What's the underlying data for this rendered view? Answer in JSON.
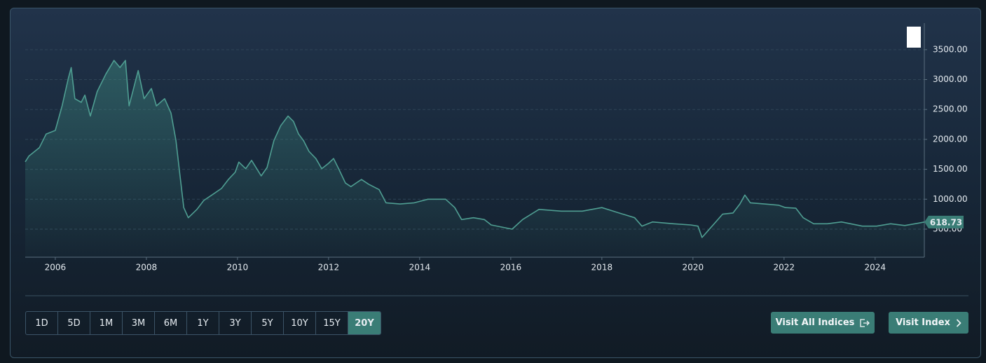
{
  "chart_data": {
    "type": "line",
    "x": [
      2005.34,
      2005.42,
      2005.65,
      2005.8,
      2006.0,
      2006.15,
      2006.29,
      2006.35,
      2006.43,
      2006.57,
      2006.65,
      2006.77,
      2006.92,
      2007.11,
      2007.29,
      2007.42,
      2007.54,
      2007.62,
      2007.82,
      2007.95,
      2008.11,
      2008.22,
      2008.4,
      2008.54,
      2008.65,
      2008.72,
      2008.82,
      2008.92,
      2009.11,
      2009.26,
      2009.42,
      2009.65,
      2009.8,
      2009.95,
      2010.03,
      2010.18,
      2010.31,
      2010.52,
      2010.65,
      2010.8,
      2010.95,
      2011.11,
      2011.23,
      2011.34,
      2011.45,
      2011.57,
      2011.72,
      2011.85,
      2012.0,
      2012.11,
      2012.22,
      2012.37,
      2012.49,
      2012.72,
      2012.88,
      2013.11,
      2013.26,
      2013.57,
      2013.88,
      2014.18,
      2014.57,
      2014.77,
      2014.92,
      2015.18,
      2015.42,
      2015.57,
      2016.03,
      2016.26,
      2016.62,
      2017.11,
      2017.57,
      2018.0,
      2018.34,
      2018.72,
      2018.88,
      2019.11,
      2019.57,
      2019.95,
      2020.11,
      2020.2,
      2020.42,
      2020.65,
      2020.88,
      2021.03,
      2021.14,
      2021.26,
      2021.57,
      2021.88,
      2022.03,
      2022.26,
      2022.42,
      2022.65,
      2022.95,
      2023.26,
      2023.72,
      2024.03,
      2024.34,
      2024.65,
      2024.95,
      2025.08
    ],
    "values": [
      1624,
      1720,
      1860,
      2090,
      2150,
      2560,
      3030,
      3200,
      2680,
      2620,
      2740,
      2390,
      2800,
      3090,
      3320,
      3200,
      3320,
      2560,
      3150,
      2680,
      2850,
      2560,
      2680,
      2440,
      1980,
      1510,
      860,
      690,
      830,
      980,
      1060,
      1180,
      1330,
      1450,
      1620,
      1510,
      1650,
      1390,
      1530,
      1980,
      2230,
      2390,
      2300,
      2090,
      1980,
      1800,
      1680,
      1510,
      1600,
      1680,
      1510,
      1270,
      1210,
      1330,
      1250,
      1160,
      940,
      920,
      940,
      1000,
      1000,
      860,
      660,
      690,
      660,
      570,
      500,
      660,
      830,
      800,
      800,
      860,
      780,
      690,
      550,
      620,
      590,
      570,
      550,
      360,
      550,
      750,
      770,
      920,
      1070,
      940,
      920,
      900,
      860,
      850,
      690,
      590,
      590,
      620,
      550,
      550,
      590,
      560,
      600,
      618.73
    ],
    "color": "#4f9e92",
    "xlim": [
      2005.34,
      2025.08
    ],
    "xticks": [
      2006,
      2008,
      2010,
      2012,
      2014,
      2016,
      2018,
      2020,
      2022,
      2024
    ],
    "ylim": [
      31,
      3943
    ],
    "yticks": [
      {
        "value": 500,
        "label": "500.00"
      },
      {
        "value": 1000,
        "label": "1000.00"
      },
      {
        "value": 1500,
        "label": "1500.00"
      },
      {
        "value": 2000,
        "label": "2000.00"
      },
      {
        "value": 2500,
        "label": "2500.00"
      },
      {
        "value": 3000,
        "label": "3000.00"
      },
      {
        "value": 3500,
        "label": "3500.00"
      }
    ],
    "grid": true
  },
  "ranges": [
    "1D",
    "5D",
    "1M",
    "3M",
    "6M",
    "1Y",
    "3Y",
    "5Y",
    "10Y",
    "15Y",
    "20Y"
  ],
  "active_range": "20Y",
  "links": [
    "Visit All Indices",
    "Visit Index"
  ]
}
